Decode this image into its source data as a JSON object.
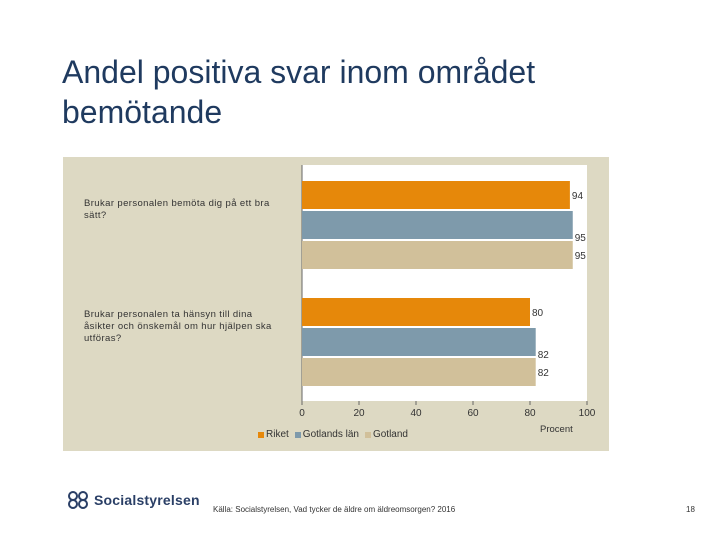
{
  "title": "Andel positiva svar inom området bemötande",
  "chart_data": {
    "type": "bar",
    "orientation": "horizontal",
    "categories": [
      "Brukar personalen bemöta dig på ett bra sätt?",
      "Brukar personalen ta hänsyn till dina åsikter och önskemål om hur hjälpen ska utföras?"
    ],
    "series": [
      {
        "name": "Riket",
        "values": [
          94,
          80
        ],
        "color": "#e6880a"
      },
      {
        "name": "Gotlands län",
        "values": [
          95,
          82
        ],
        "color": "#7e9aab"
      },
      {
        "name": "Gotland",
        "values": [
          95,
          82
        ],
        "color": "#d1c09a"
      }
    ],
    "xlim": [
      0,
      100
    ],
    "xticks": [
      "0",
      "20",
      "40",
      "60",
      "80",
      "100"
    ],
    "xlabel": "Procent",
    "legend_position": "bottom"
  },
  "footer": {
    "logo": "Socialstyrelsen",
    "source": "Källa: Socialstyrelsen, Vad tycker de äldre om äldreomsorgen? 2016",
    "page": "18"
  }
}
